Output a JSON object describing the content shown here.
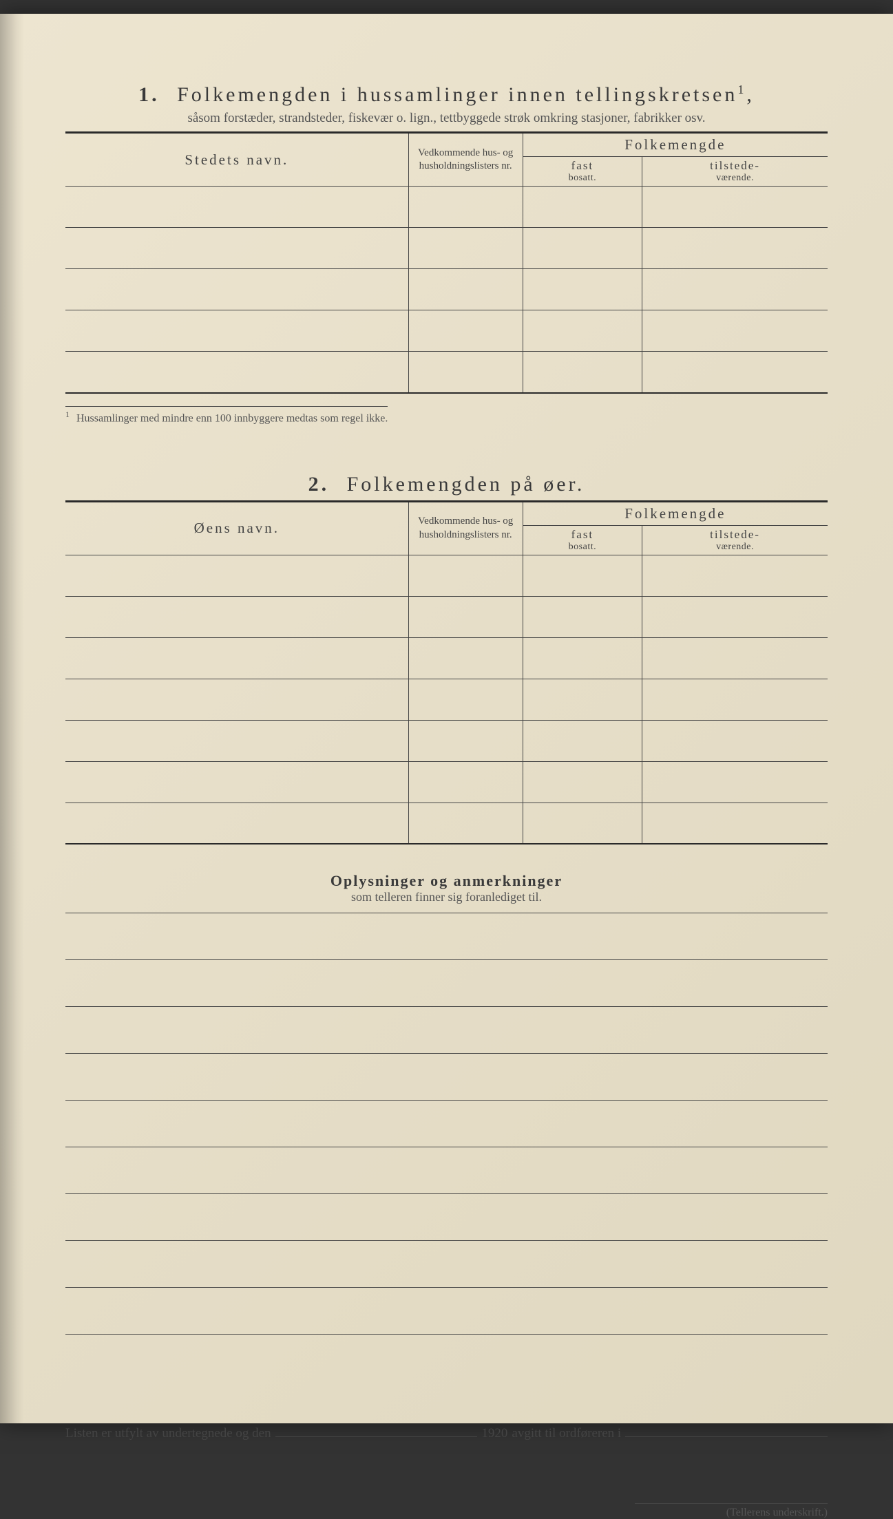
{
  "colors": {
    "paper_bg": "#e8e0cc",
    "ink": "#3a3a3a",
    "rule": "#444444"
  },
  "section1": {
    "number": "1.",
    "title": "Folkemengden i hussamlinger innen tellingskretsen",
    "title_sup": "1",
    "subtitle": "såsom forstæder, strandsteder, fiskevær o. lign., tettbyggede strøk omkring stasjoner, fabrikker osv.",
    "columns": {
      "name": "Stedets navn.",
      "nr": "Vedkommende hus- og husholdningslisters nr.",
      "folk": "Folkemengde",
      "fast_top": "fast",
      "fast_bot": "bosatt.",
      "til_top": "tilstede-",
      "til_bot": "værende."
    },
    "rows": [
      "",
      "",
      "",
      "",
      ""
    ],
    "footnote_num": "1",
    "footnote": "Hussamlinger med mindre enn 100 innbyggere medtas som regel ikke."
  },
  "section2": {
    "number": "2.",
    "title": "Folkemengden på øer.",
    "columns": {
      "name": "Øens navn.",
      "nr": "Vedkommende hus- og husholdningslisters nr.",
      "folk": "Folkemengde",
      "fast_top": "fast",
      "fast_bot": "bosatt.",
      "til_top": "tilstede-",
      "til_bot": "værende."
    },
    "rows": [
      "",
      "",
      "",
      "",
      "",
      "",
      ""
    ]
  },
  "remarks": {
    "title": "Oplysninger og anmerkninger",
    "subtitle": "som telleren finner sig foranlediget til.",
    "line_count": 9
  },
  "signoff": {
    "part1": "Listen er utfylt av undertegnede og den",
    "year": "1920",
    "part2": "avgitt til ordføreren i"
  },
  "signature_label": "(Tellerens underskrift.)"
}
